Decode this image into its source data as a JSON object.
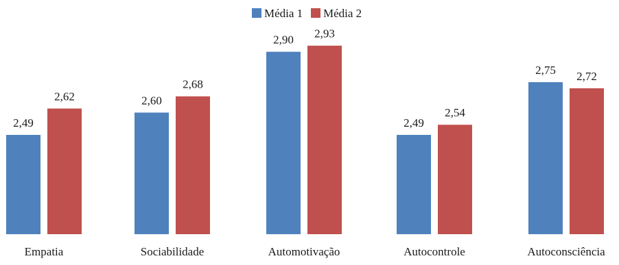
{
  "colors": {
    "series_1": "#4f81bd",
    "series_2": "#c0504d"
  },
  "chart_data": {
    "type": "bar",
    "title": "",
    "xlabel": "",
    "ylabel": "",
    "categories": [
      "Empatia",
      "Sociabilidade",
      "Automotivação",
      "Autocontrole",
      "Autoconsciência"
    ],
    "series": [
      {
        "name": "Média 1",
        "values": [
          2.49,
          2.6,
          2.9,
          2.49,
          2.75
        ],
        "labels": [
          "2,49",
          "2,60",
          "2,90",
          "2,49",
          "2,75"
        ]
      },
      {
        "name": "Média 2",
        "values": [
          2.62,
          2.68,
          2.93,
          2.54,
          2.72
        ],
        "labels": [
          "2,62",
          "2,68",
          "2,93",
          "2,54",
          "2,72"
        ]
      }
    ],
    "ylim": [
      2.0,
      3.0
    ],
    "grid": false,
    "legend_position": "top-center"
  }
}
